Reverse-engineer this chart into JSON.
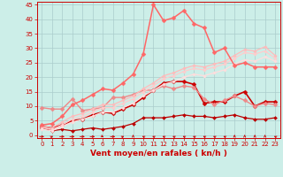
{
  "title": "",
  "xlabel": "Vent moyen/en rafales ( kn/h )",
  "xlim": [
    -0.5,
    23.5
  ],
  "ylim": [
    -1,
    46
  ],
  "yticks": [
    0,
    5,
    10,
    15,
    20,
    25,
    30,
    35,
    40,
    45
  ],
  "xticks": [
    0,
    1,
    2,
    3,
    4,
    5,
    6,
    7,
    8,
    9,
    10,
    11,
    12,
    13,
    14,
    15,
    16,
    17,
    18,
    19,
    20,
    21,
    22,
    23
  ],
  "bg_color": "#cceee8",
  "grid_color": "#aacccc",
  "series": [
    {
      "y": [
        2.5,
        1.5,
        2.0,
        1.5,
        2.0,
        2.5,
        2.0,
        2.5,
        3.0,
        4.0,
        6.0,
        6.0,
        6.0,
        6.5,
        7.0,
        6.5,
        6.5,
        6.0,
        6.5,
        7.0,
        6.0,
        5.5,
        5.5,
        6.0
      ],
      "color": "#bb0000",
      "lw": 0.9,
      "ms": 2.0
    },
    {
      "y": [
        3.0,
        2.5,
        3.5,
        5.0,
        5.5,
        7.0,
        8.0,
        7.5,
        9.0,
        10.5,
        13.0,
        15.5,
        18.0,
        18.5,
        18.5,
        17.5,
        11.0,
        11.5,
        11.5,
        13.5,
        15.0,
        10.0,
        11.5,
        11.5
      ],
      "color": "#cc0000",
      "lw": 1.2,
      "ms": 2.5
    },
    {
      "y": [
        9.5,
        9.0,
        9.0,
        12.5,
        8.5,
        9.0,
        9.5,
        13.0,
        13.0,
        14.0,
        15.5,
        15.5,
        17.0,
        16.0,
        17.0,
        16.5,
        12.5,
        10.5,
        12.0,
        13.5,
        12.0,
        10.0,
        11.0,
        10.5
      ],
      "color": "#ee8888",
      "lw": 1.0,
      "ms": 2.5
    },
    {
      "y": [
        3.0,
        2.5,
        4.5,
        6.5,
        7.5,
        9.0,
        10.5,
        10.5,
        12.0,
        13.5,
        16.0,
        18.0,
        20.5,
        21.5,
        23.0,
        24.0,
        23.5,
        24.5,
        25.5,
        27.5,
        29.5,
        29.0,
        30.5,
        27.5
      ],
      "color": "#ffbbbb",
      "lw": 0.9,
      "ms": 1.8
    },
    {
      "y": [
        2.5,
        2.0,
        3.5,
        5.5,
        6.5,
        8.0,
        9.5,
        9.5,
        11.0,
        12.5,
        15.0,
        17.0,
        19.5,
        20.5,
        22.0,
        23.0,
        22.5,
        23.5,
        24.5,
        26.5,
        28.5,
        28.0,
        29.0,
        26.5
      ],
      "color": "#ffcccc",
      "lw": 0.9,
      "ms": 1.8
    },
    {
      "y": [
        2.0,
        1.5,
        3.0,
        4.5,
        5.5,
        6.5,
        8.0,
        8.0,
        9.5,
        11.0,
        13.5,
        15.5,
        17.5,
        18.5,
        20.0,
        21.0,
        20.5,
        21.5,
        22.5,
        24.5,
        26.0,
        25.5,
        27.0,
        25.5
      ],
      "color": "#ffdddd",
      "lw": 0.9,
      "ms": 1.8
    },
    {
      "y": [
        3.5,
        4.0,
        6.5,
        10.5,
        12.0,
        14.0,
        16.0,
        15.5,
        18.0,
        21.0,
        28.0,
        45.0,
        39.5,
        40.5,
        43.0,
        38.5,
        37.0,
        28.5,
        30.0,
        24.0,
        25.0,
        23.5,
        23.5,
        23.5
      ],
      "color": "#ff6666",
      "lw": 1.1,
      "ms": 2.5
    }
  ],
  "tick_fontsize": 5,
  "xlabel_fontsize": 6.5,
  "axis_color": "#cc0000",
  "arrow_angles": [
    270,
    225,
    270,
    270,
    270,
    270,
    315,
    270,
    225,
    180,
    135,
    135,
    135,
    135,
    135,
    135,
    135,
    135,
    135,
    180,
    180,
    180,
    180,
    135
  ]
}
